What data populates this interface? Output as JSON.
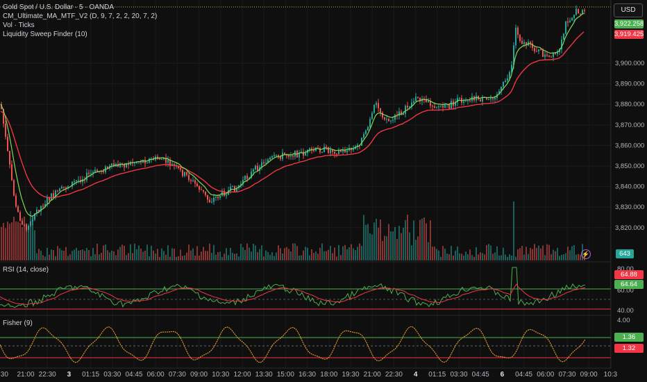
{
  "legend": {
    "symbol": "Gold Spot / U.S. Dollar · 5 · OANDA",
    "ma": "CM_Ultimate_MA_MTF_V2 (D, 9, 7, 2, 2, 20, 7, 2)",
    "vol": "Vol · Ticks",
    "sweep": "Liquidity Sweep Finder (10)",
    "rsi": "RSI (14, close)",
    "fisher": "Fisher (9)"
  },
  "currency_button": "USD",
  "price_axis": [
    "3,900.000",
    "3,890.000",
    "3,880.000",
    "3,870.000",
    "3,860.000",
    "3,850.000",
    "3,840.000",
    "3,830.000",
    "3,820.000"
  ],
  "price_tags": {
    "green": "3,922.258",
    "red": "3,919.425",
    "vol": "643"
  },
  "rsi_axis": [
    "80.00",
    "60.00",
    "40.00"
  ],
  "rsi_tags": {
    "red": "64.88",
    "green": "64.64"
  },
  "fisher_axis": [
    "4.00"
  ],
  "fisher_tags": {
    "green": "1.36",
    "red": "1.32"
  },
  "time_axis": [
    "21:00",
    "22:30",
    "3",
    "01:15",
    "03:30",
    "04:45",
    "06:00",
    "07:30",
    "09:00",
    "10:30",
    "12:00",
    "13:30",
    "15:00",
    "16:30",
    "18:00",
    "19:30",
    "21:00",
    "22:30",
    "4",
    "01:15",
    "03:30",
    "04:45",
    "6",
    "04:45",
    "06:00",
    "07:30",
    "09:00",
    "10:3"
  ],
  "time_axis_edge": ":30",
  "bold_ticks": [
    "3",
    "4",
    "6"
  ],
  "colors": {
    "up": "#26a69a",
    "down": "#ef5350",
    "ma_fast": "#7ed957",
    "ma_slow": "#f23645",
    "rsi_line": "#4caf50",
    "fisher": "#f0a030"
  },
  "icons": {
    "alert": "lightning-icon"
  }
}
